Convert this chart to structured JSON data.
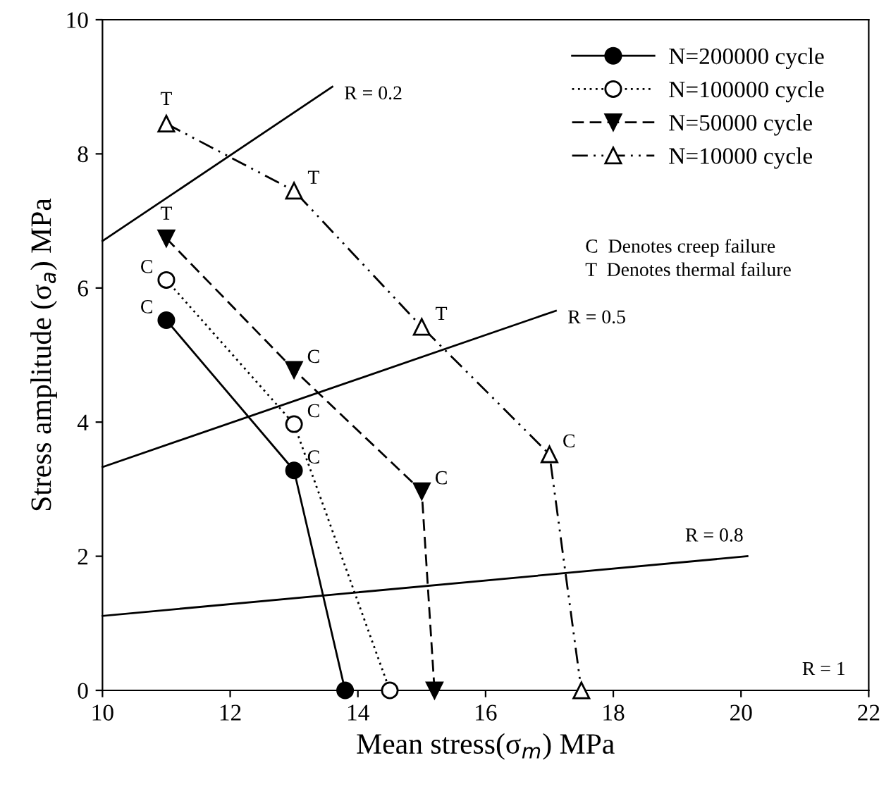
{
  "chart_data": {
    "type": "line",
    "xlabel": "Mean stress(σ$_{m}$) MPa",
    "ylabel": "Stress amplitude (σ$_{a}$) MPa",
    "xlim": [
      10,
      22
    ],
    "ylim": [
      0,
      10
    ],
    "xticks": [
      10,
      12,
      14,
      16,
      18,
      20,
      22
    ],
    "yticks": [
      0,
      2,
      4,
      6,
      8,
      10
    ],
    "grid": false,
    "legend": "top right",
    "series": [
      {
        "name": "N=200000 cycle",
        "color": "#000000",
        "x": [
          11,
          13,
          13.8
        ],
        "values": [
          5.52,
          3.28,
          0
        ],
        "marker": "circle",
        "line_style": "solid"
      },
      {
        "name": "N=100000 cycle",
        "color": "#000000",
        "x": [
          11,
          13,
          14.5
        ],
        "values": [
          6.12,
          3.97,
          0
        ],
        "marker": "circle_open",
        "line_style": "dotted"
      },
      {
        "name": "N=50000 cycle",
        "color": "#000000",
        "x": [
          11,
          13,
          15,
          15.2
        ],
        "values": [
          6.74,
          4.78,
          2.97,
          0
        ],
        "marker": "triangle_down",
        "line_style": "dashed"
      },
      {
        "name": "N=10000 cycle",
        "color": "#000000",
        "x": [
          11,
          13,
          15,
          17,
          17.5
        ],
        "values": [
          8.45,
          7.45,
          5.42,
          3.52,
          0
        ],
        "marker": "triangle_open",
        "line_style": "dashdotdot"
      },
      {
        "name": "R = 0.2",
        "color": "#000000",
        "x": [
          10,
          13.6
        ],
        "values": [
          6.7,
          9.0
        ],
        "marker": "none",
        "line_style": "solid"
      },
      {
        "name": "R = 0.5",
        "color": "#000000",
        "x": [
          10,
          17.1
        ],
        "values": [
          3.33,
          5.66
        ],
        "marker": "none",
        "line_style": "solid"
      },
      {
        "name": "R = 0.8",
        "color": "#000000",
        "x": [
          10,
          20.1
        ],
        "values": [
          1.11,
          2.0
        ],
        "marker": "none",
        "line_style": "solid"
      }
    ],
    "annotations": [
      "R = 1",
      {
        "text": "T",
        "x": 11,
        "y": 8.45
      },
      {
        "text": "T",
        "x": 13,
        "y": 7.45
      },
      {
        "text": "T",
        "x": 15,
        "y": 5.42
      },
      {
        "text": "C",
        "x": 17,
        "y": 3.52
      },
      {
        "text": "T",
        "x": 11,
        "y": 6.74
      },
      {
        "text": "C",
        "x": 13,
        "y": 4.78
      },
      {
        "text": "C",
        "x": 15,
        "y": 2.97
      },
      {
        "text": "C",
        "x": 11,
        "y": 6.12
      },
      {
        "text": "C",
        "x": 13,
        "y": 3.97
      },
      {
        "text": "C",
        "x": 11,
        "y": 5.52
      },
      {
        "text": "C",
        "x": 13,
        "y": 3.28
      },
      "C  Denotes creep failure",
      "T  Denotes thermal failure"
    ]
  }
}
